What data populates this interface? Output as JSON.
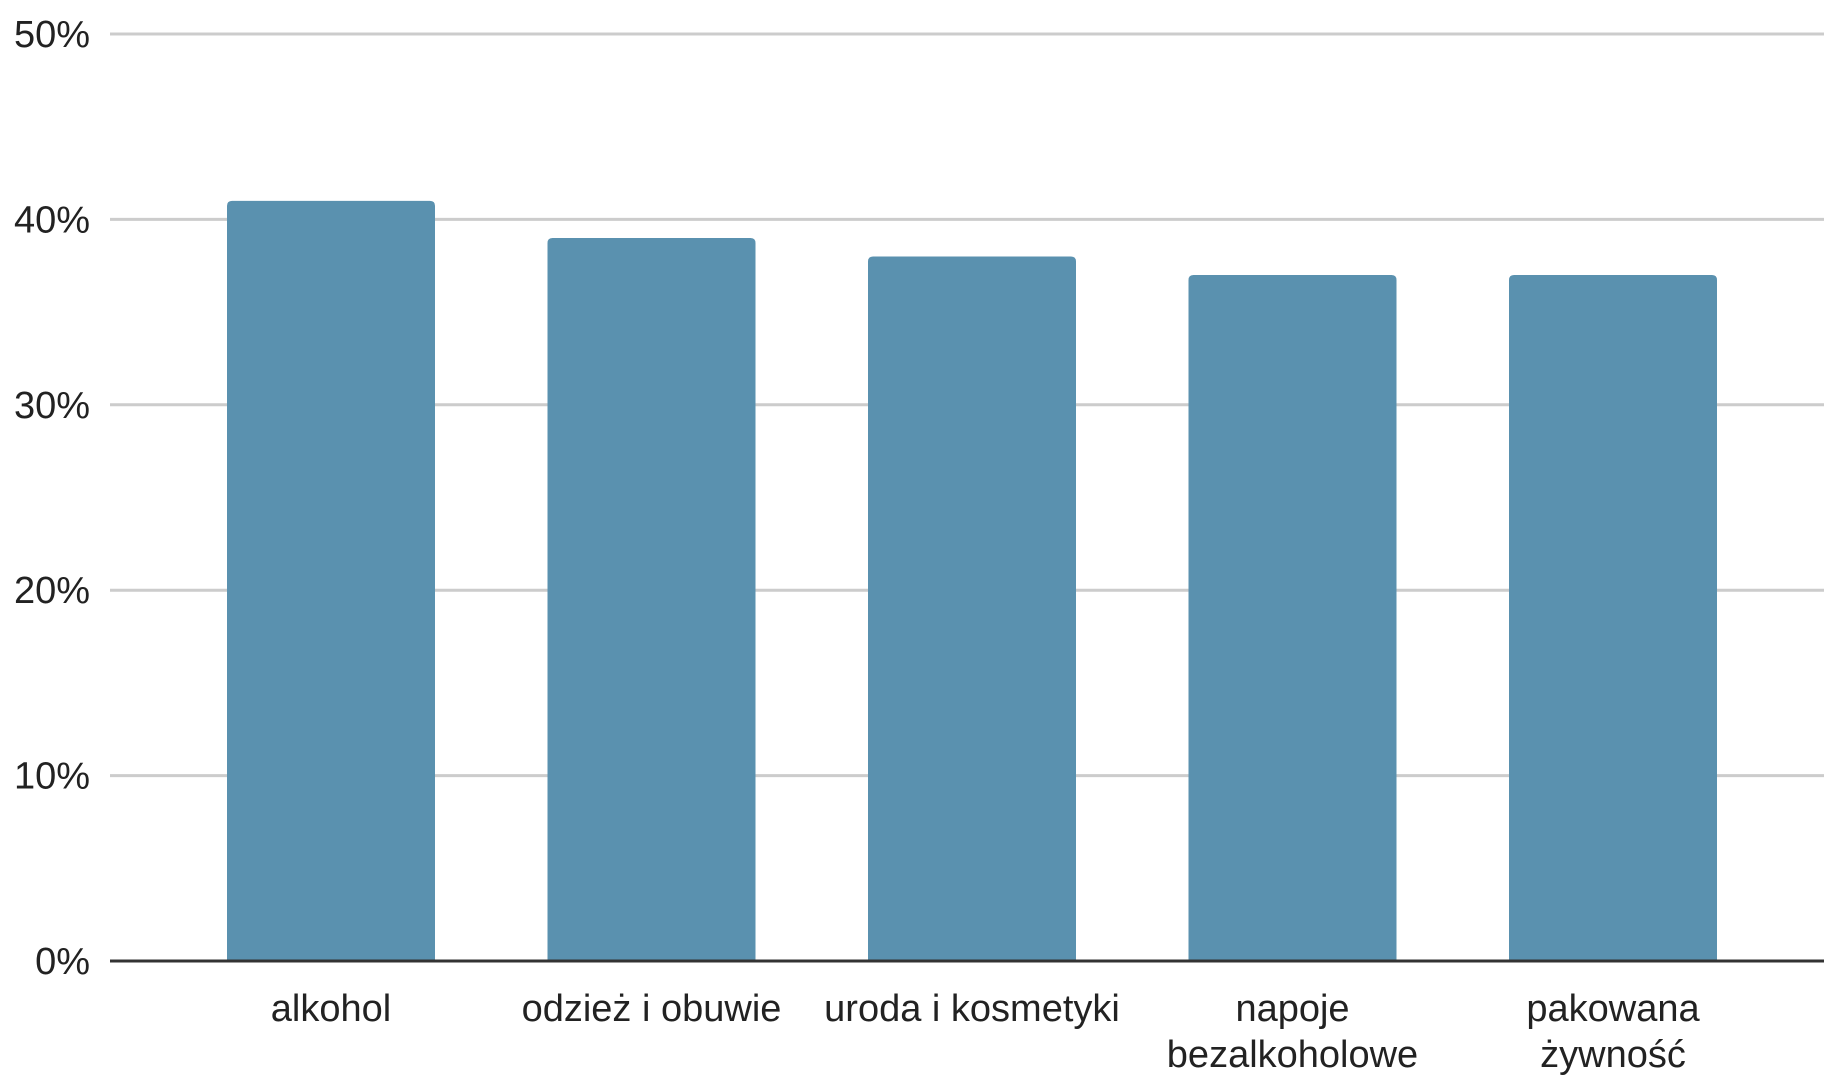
{
  "colors": {
    "bar": "#5a91af",
    "grid": "#cccccc",
    "baseline": "#333333",
    "text": "#222222",
    "background": "#ffffff"
  },
  "chart_data": {
    "type": "bar",
    "title": "",
    "xlabel": "",
    "ylabel": "",
    "categories": [
      [
        "alkohol"
      ],
      [
        "odzież i obuwie"
      ],
      [
        "uroda i kosmetyki"
      ],
      [
        "napoje",
        "bezalkoholowe"
      ],
      [
        "pakowana",
        "żywność"
      ]
    ],
    "values": [
      41,
      39,
      38,
      37,
      37
    ],
    "unit": "%",
    "ylim": [
      0,
      50
    ],
    "yticks": [
      0,
      10,
      20,
      30,
      40,
      50
    ],
    "ytick_labels": [
      "0%",
      "10%",
      "20%",
      "30%",
      "40%",
      "50%"
    ],
    "grid": true,
    "legend": "none"
  }
}
